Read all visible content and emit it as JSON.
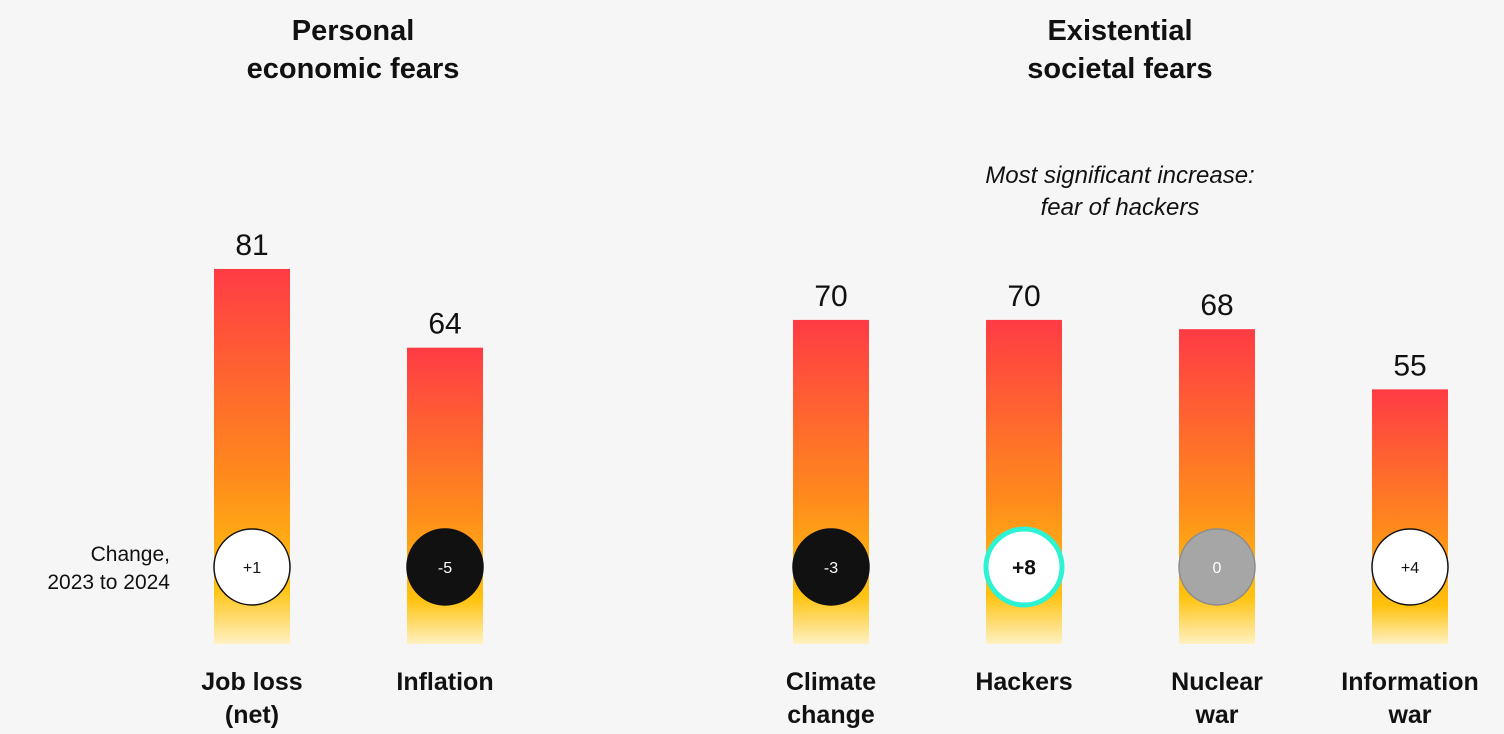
{
  "change_label": [
    "Change,",
    "2023 to 2024"
  ],
  "chart_data": [
    {
      "type": "bar",
      "title": [
        "Personal",
        "economic fears"
      ],
      "subtitle": [],
      "categories": [
        [
          "Job loss",
          "(net)"
        ],
        [
          "Inflation"
        ]
      ],
      "values": [
        81,
        64
      ],
      "change": [
        "+1",
        "-5"
      ],
      "change_style": [
        "white",
        "black"
      ]
    },
    {
      "type": "bar",
      "title": [
        "Existential",
        "societal fears"
      ],
      "subtitle": [
        "Most significant increase:",
        "fear of hackers"
      ],
      "categories": [
        [
          "Climate",
          "change"
        ],
        [
          "Hackers"
        ],
        [
          "Nuclear",
          "war"
        ],
        [
          "Information",
          "war"
        ]
      ],
      "values": [
        70,
        70,
        68,
        55
      ],
      "change": [
        "-3",
        "+8",
        "0",
        "+4"
      ],
      "change_style": [
        "black",
        "highlight",
        "gray",
        "white"
      ]
    }
  ],
  "colors": {
    "bar_top": "#ff3b45",
    "bar_mid": "#ff8a1c",
    "bar_low": "#ffc20e",
    "bar_fade": "#fff1c2",
    "circle_black": "#111111",
    "circle_gray": "#a6a6a6",
    "circle_white": "#ffffff",
    "highlight_ring": "#2ef2d4",
    "text": "#111111"
  }
}
